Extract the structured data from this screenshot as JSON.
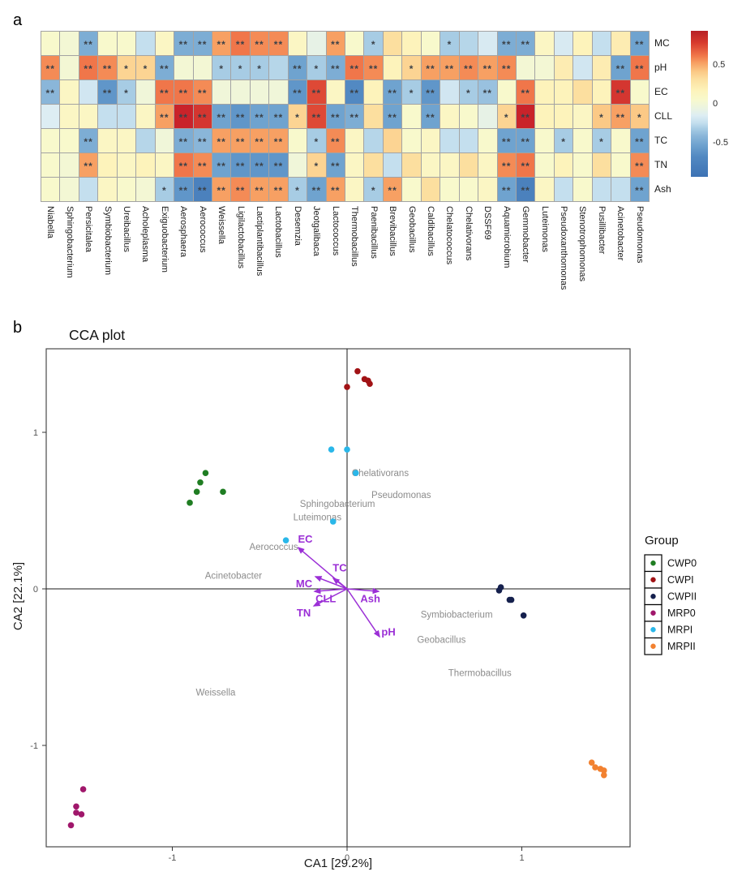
{
  "panels": {
    "a_label": "a",
    "b_label": "b"
  },
  "chart_data": [
    {
      "type": "heatmap",
      "panel": "a",
      "rows": [
        "MC",
        "pH",
        "EC",
        "CLL",
        "TC",
        "TN",
        "Ash"
      ],
      "columns": [
        "Niabella",
        "Sphingobacterium",
        "Persicitalea",
        "Symbiobacterium",
        "Ureibacillus",
        "Acholeplasma",
        "Exiguobacterium",
        "Aerosphaera",
        "Aerococcus",
        "Weissella",
        "Ligilactobacillus",
        "Lactiplantibacillus",
        "Lactobacillus",
        "Desemzia",
        "Jeotgalibaca",
        "Lactococcus",
        "Thermobacillus",
        "Paenibacillus",
        "Brevibacillus",
        "Geobacillus",
        "Caldibacillus",
        "Chelatococcus",
        "Chelativorans",
        "DSSF69",
        "Aquamicrobium",
        "Gemmobacter",
        "Luteimonas",
        "Pseudoxanthomonas",
        "Stenotrophomonas",
        "Pusillibacter",
        "Acinetobacter",
        "Pseudomonas"
      ],
      "values": [
        [
          0.05,
          0.02,
          -0.45,
          0.05,
          0.05,
          -0.2,
          0.1,
          -0.45,
          -0.45,
          0.5,
          0.6,
          0.55,
          0.55,
          0.1,
          -0.05,
          0.5,
          0.05,
          -0.3,
          0.3,
          0.15,
          0.05,
          -0.3,
          -0.25,
          -0.12,
          -0.45,
          -0.45,
          0.1,
          -0.12,
          0.15,
          -0.2,
          0.2,
          -0.5
        ],
        [
          0.55,
          0.02,
          0.6,
          0.55,
          0.35,
          0.35,
          -0.45,
          0.02,
          0.02,
          -0.3,
          -0.3,
          -0.3,
          -0.25,
          -0.5,
          -0.3,
          -0.45,
          0.6,
          0.55,
          0.15,
          0.35,
          0.5,
          0.5,
          0.55,
          0.5,
          0.55,
          0.02,
          0.02,
          0.2,
          -0.15,
          0.2,
          -0.5,
          0.6
        ],
        [
          -0.4,
          0.1,
          -0.15,
          -0.55,
          -0.3,
          0.0,
          0.6,
          0.6,
          0.55,
          0.0,
          0.0,
          0.0,
          0.0,
          -0.55,
          0.7,
          0.1,
          -0.6,
          0.15,
          -0.5,
          -0.3,
          -0.55,
          -0.15,
          -0.3,
          -0.35,
          0.05,
          0.6,
          0.15,
          0.15,
          0.3,
          0.15,
          0.75,
          0.05
        ],
        [
          -0.1,
          0.1,
          0.1,
          -0.2,
          -0.2,
          0.1,
          0.5,
          0.8,
          0.75,
          -0.5,
          -0.55,
          -0.5,
          -0.5,
          0.35,
          0.7,
          -0.5,
          -0.45,
          0.3,
          -0.5,
          0.05,
          -0.5,
          0.1,
          0.05,
          -0.05,
          0.35,
          0.8,
          0.15,
          0.15,
          0.1,
          0.4,
          0.5,
          0.4
        ],
        [
          0.05,
          0.05,
          -0.45,
          0.1,
          0.1,
          -0.25,
          0.0,
          -0.45,
          -0.4,
          0.5,
          0.5,
          0.5,
          0.5,
          0.05,
          -0.3,
          0.55,
          0.1,
          -0.25,
          0.35,
          0.05,
          0.1,
          -0.2,
          -0.2,
          0.05,
          -0.5,
          -0.5,
          0.05,
          -0.3,
          0.05,
          -0.3,
          0.05,
          -0.5
        ],
        [
          0.05,
          0.02,
          0.5,
          0.15,
          0.1,
          0.15,
          0.1,
          0.6,
          0.55,
          -0.5,
          -0.55,
          -0.55,
          -0.55,
          0.0,
          0.35,
          -0.5,
          0.1,
          0.3,
          -0.2,
          0.3,
          0.1,
          0.1,
          0.3,
          0.1,
          0.55,
          0.6,
          0.05,
          0.15,
          0.05,
          0.3,
          0.05,
          0.55
        ],
        [
          0.05,
          0.02,
          -0.2,
          0.1,
          0.05,
          0.02,
          -0.3,
          -0.55,
          -0.65,
          0.5,
          0.55,
          0.5,
          0.5,
          -0.3,
          -0.5,
          0.5,
          0.1,
          -0.3,
          0.5,
          0.05,
          0.3,
          0.05,
          0.05,
          0.1,
          -0.5,
          -0.65,
          0.1,
          -0.2,
          0.05,
          -0.2,
          -0.2,
          -0.5
        ]
      ],
      "significance": [
        [
          "",
          "",
          "**",
          "",
          "",
          "",
          "",
          "**",
          "**",
          "**",
          "**",
          "**",
          "**",
          "",
          "",
          "**",
          "",
          "*",
          "",
          "",
          "",
          "*",
          "",
          "",
          "**",
          "**",
          "",
          "",
          "",
          "",
          "",
          "**"
        ],
        [
          "**",
          "",
          "**",
          "**",
          "*",
          "*",
          "**",
          "",
          "",
          "*",
          "*",
          "*",
          "",
          "**",
          "*",
          "**",
          "**",
          "**",
          "",
          "*",
          "**",
          "**",
          "**",
          "**",
          "**",
          "",
          "",
          "",
          "",
          "",
          "**",
          "**"
        ],
        [
          "**",
          "",
          "",
          "**",
          "*",
          "",
          "**",
          "**",
          "**",
          "",
          "",
          "",
          "",
          "**",
          "**",
          "",
          "**",
          "",
          "**",
          "*",
          "**",
          "",
          "*",
          "**",
          "",
          "**",
          "",
          "",
          "",
          "",
          "**",
          ""
        ],
        [
          "",
          "",
          "",
          "",
          "",
          "",
          "**",
          "**",
          "**",
          "**",
          "**",
          "**",
          "**",
          "*",
          "**",
          "**",
          "**",
          "",
          "**",
          "",
          "**",
          "",
          "",
          "",
          "*",
          "**",
          "",
          "",
          "",
          "*",
          "**",
          "*"
        ],
        [
          "",
          "",
          "**",
          "",
          "",
          "",
          "",
          "**",
          "**",
          "**",
          "**",
          "**",
          "**",
          "",
          "*",
          "**",
          "",
          "",
          "",
          "",
          "",
          "",
          "",
          "",
          "**",
          "**",
          "",
          "*",
          "",
          "*",
          "",
          "**"
        ],
        [
          "",
          "",
          "**",
          "",
          "",
          "",
          "",
          "**",
          "**",
          "**",
          "**",
          "**",
          "**",
          "",
          "*",
          "**",
          "",
          "",
          "",
          "",
          "",
          "",
          "",
          "",
          "**",
          "**",
          "",
          "",
          "",
          "",
          "",
          "**"
        ],
        [
          "",
          "",
          "",
          "",
          "",
          "",
          "*",
          "**",
          "**",
          "**",
          "**",
          "**",
          "**",
          "*",
          "**",
          "**",
          "",
          "*",
          "**",
          "",
          "",
          "",
          "",
          "",
          "**",
          "**",
          "",
          "",
          "",
          "",
          "",
          "**"
        ]
      ],
      "colorbar": {
        "tick_labels": [
          "0.5",
          "0",
          "-0.5"
        ],
        "tick_values": [
          0.5,
          0,
          -0.5
        ],
        "range": [
          -0.93,
          0.93
        ]
      },
      "color_stops": [
        [
          -0.75,
          "#3d72b4"
        ],
        [
          -0.6,
          "#5289c2"
        ],
        [
          -0.5,
          "#6fa3cf"
        ],
        [
          -0.4,
          "#8ab6d9"
        ],
        [
          -0.3,
          "#a7cce4"
        ],
        [
          -0.2,
          "#c4dfee"
        ],
        [
          -0.1,
          "#ddedf3"
        ],
        [
          -0.03,
          "#ebf4e1"
        ],
        [
          0.05,
          "#f8f9cc"
        ],
        [
          0.15,
          "#fdf3bb"
        ],
        [
          0.3,
          "#fcdf9f"
        ],
        [
          0.4,
          "#fbc986"
        ],
        [
          0.5,
          "#f7a063"
        ],
        [
          0.6,
          "#f0764a"
        ],
        [
          0.7,
          "#de4936"
        ],
        [
          0.8,
          "#c9232a"
        ]
      ]
    },
    {
      "type": "scatter",
      "panel": "b",
      "title": "CCA plot",
      "xlabel": "CA1  [29.2%]",
      "ylabel": "CA2  [22.1%]",
      "xlim": [
        -1.72,
        1.62
      ],
      "ylim": [
        -1.65,
        1.53
      ],
      "x_ticks": [
        -1,
        0,
        1
      ],
      "y_ticks": [
        -1,
        0,
        1
      ],
      "grid": false,
      "legend": {
        "title": "Group",
        "position": "right",
        "entries": [
          {
            "label": "CWP0",
            "color": "#1f7d22"
          },
          {
            "label": "CWPI",
            "color": "#a11215"
          },
          {
            "label": "CWPII",
            "color": "#15204d"
          },
          {
            "label": "MRP0",
            "color": "#a0176b"
          },
          {
            "label": "MRPI",
            "color": "#2ab7e9"
          },
          {
            "label": "MRPII",
            "color": "#f28130"
          }
        ]
      },
      "series": [
        {
          "name": "CWP0",
          "color": "#1f7d22",
          "points": [
            [
              -0.81,
              0.74
            ],
            [
              -0.84,
              0.68
            ],
            [
              -0.86,
              0.62
            ],
            [
              -0.71,
              0.62
            ],
            [
              -0.9,
              0.55
            ]
          ]
        },
        {
          "name": "CWPI",
          "color": "#a11215",
          "points": [
            [
              0.06,
              1.39
            ],
            [
              0.1,
              1.34
            ],
            [
              0.12,
              1.33
            ],
            [
              0.13,
              1.31
            ],
            [
              0.0,
              1.29
            ]
          ]
        },
        {
          "name": "CWPII",
          "color": "#15204d",
          "points": [
            [
              0.87,
              -0.01
            ],
            [
              0.88,
              0.01
            ],
            [
              0.93,
              -0.07
            ],
            [
              0.94,
              -0.07
            ],
            [
              1.01,
              -0.17
            ]
          ]
        },
        {
          "name": "MRP0",
          "color": "#a0176b",
          "points": [
            [
              -1.51,
              -1.28
            ],
            [
              -1.55,
              -1.39
            ],
            [
              -1.55,
              -1.43
            ],
            [
              -1.52,
              -1.44
            ],
            [
              -1.58,
              -1.51
            ]
          ]
        },
        {
          "name": "MRPI",
          "color": "#2ab7e9",
          "points": [
            [
              -0.09,
              0.89
            ],
            [
              0.0,
              0.89
            ],
            [
              0.05,
              0.74
            ],
            [
              -0.08,
              0.43
            ],
            [
              -0.35,
              0.31
            ]
          ]
        },
        {
          "name": "MRPII",
          "color": "#f28130",
          "points": [
            [
              1.4,
              -1.11
            ],
            [
              1.42,
              -1.14
            ],
            [
              1.45,
              -1.15
            ],
            [
              1.47,
              -1.16
            ],
            [
              1.47,
              -1.19
            ]
          ]
        }
      ],
      "arrows": {
        "color": "#9b2fd6",
        "items": [
          {
            "label": "EC",
            "tip": [
              -0.28,
              0.264
            ],
            "label_at": [
              -0.239,
              0.316
            ]
          },
          {
            "label": "TC",
            "tip": [
              -0.079,
              0.067
            ],
            "label_at": [
              -0.042,
              0.131
            ]
          },
          {
            "label": "MC",
            "tip": [
              -0.181,
              0.078
            ],
            "label_at": [
              -0.246,
              0.031
            ]
          },
          {
            "label": "CLL",
            "tip": [
              -0.186,
              -0.016
            ],
            "label_at": [
              -0.122,
              -0.064
            ]
          },
          {
            "label": "TN",
            "tip": [
              -0.19,
              -0.109
            ],
            "label_at": [
              -0.248,
              -0.155
            ]
          },
          {
            "label": "Ash",
            "tip": [
              0.181,
              -0.016
            ],
            "label_at": [
              0.133,
              -0.064
            ]
          },
          {
            "label": "pH",
            "tip": [
              0.186,
              -0.306
            ],
            "label_at": [
              0.237,
              -0.276
            ]
          }
        ]
      },
      "annotations": {
        "color": "#8c8c8c",
        "items": [
          {
            "text": "Chelativorans",
            "x": 0.19,
            "y": 0.74
          },
          {
            "text": "Pseudomonas",
            "x": 0.31,
            "y": 0.6
          },
          {
            "text": "Sphingobacterium",
            "x": -0.055,
            "y": 0.545
          },
          {
            "text": "Luteimonas",
            "x": -0.17,
            "y": 0.459
          },
          {
            "text": "Aerococcus",
            "x": -0.42,
            "y": 0.269
          },
          {
            "text": "Acinetobacter",
            "x": -0.65,
            "y": 0.086
          },
          {
            "text": "Symbiobacterium",
            "x": 0.627,
            "y": -0.162
          },
          {
            "text": "Geobacillus",
            "x": 0.54,
            "y": -0.323
          },
          {
            "text": "Thermobacillus",
            "x": 0.76,
            "y": -0.535
          },
          {
            "text": "Weissella",
            "x": -0.752,
            "y": -0.66
          }
        ]
      }
    }
  ]
}
